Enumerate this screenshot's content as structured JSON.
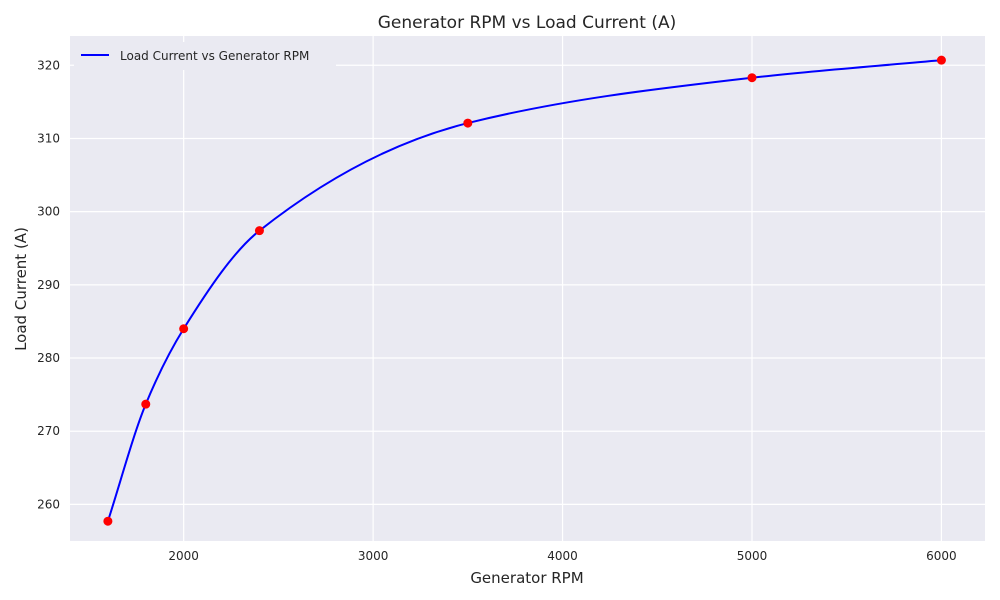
{
  "chart_data": {
    "type": "line",
    "title": "Generator RPM vs Load Current (A)",
    "xlabel": "Generator RPM",
    "ylabel": "Load Current (A)",
    "xlim": [
      1400,
      6230
    ],
    "ylim": [
      255,
      324
    ],
    "xticks": [
      2000,
      3000,
      4000,
      5000,
      6000
    ],
    "yticks": [
      260,
      270,
      280,
      290,
      300,
      310,
      320
    ],
    "grid": true,
    "legend_position": "top-left",
    "series": [
      {
        "name": "Load Current vs Generator RPM",
        "color": "#0000ff",
        "marker_color": "#ff0000",
        "points": [
          {
            "x": 1600,
            "y": 257.7
          },
          {
            "x": 1800,
            "y": 273.7
          },
          {
            "x": 2000,
            "y": 284.0
          },
          {
            "x": 2400,
            "y": 297.4
          },
          {
            "x": 3500,
            "y": 312.1
          },
          {
            "x": 5000,
            "y": 318.3
          },
          {
            "x": 6000,
            "y": 320.7
          }
        ]
      }
    ],
    "colors": {
      "plot_background": "#eaeaf2",
      "grid": "#ffffff",
      "text": "#262626"
    }
  }
}
